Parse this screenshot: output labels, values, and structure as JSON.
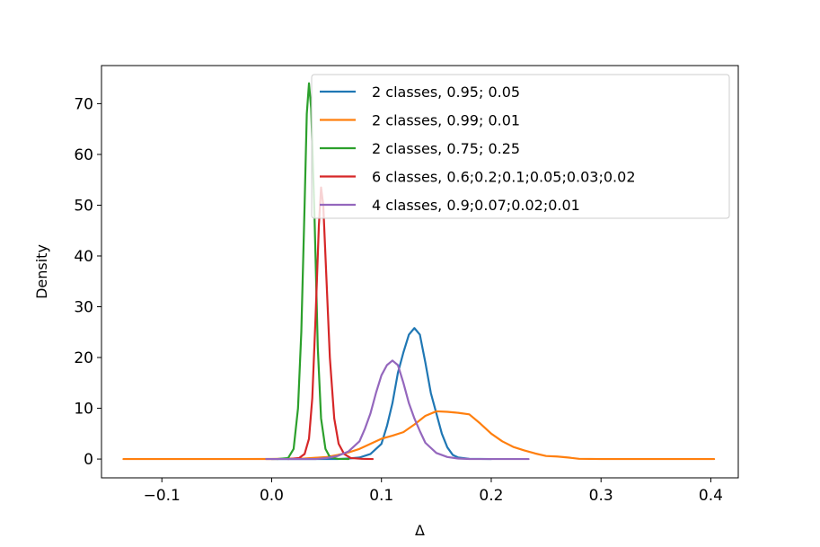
{
  "chart_data": {
    "type": "line",
    "title": "",
    "xlabel": "Δ",
    "ylabel": "Density",
    "xlim": [
      -0.155,
      0.425
    ],
    "ylim": [
      -3.7,
      77.5
    ],
    "xticks": [
      -0.1,
      0.0,
      0.1,
      0.2,
      0.3,
      0.4
    ],
    "xtick_labels": [
      "−0.1",
      "0.0",
      "0.1",
      "0.2",
      "0.3",
      "0.4"
    ],
    "yticks": [
      0,
      10,
      20,
      30,
      40,
      50,
      60,
      70
    ],
    "ytick_labels": [
      "0",
      "10",
      "20",
      "30",
      "40",
      "50",
      "60",
      "70"
    ],
    "grid": false,
    "legend_position": "top-right",
    "series": [
      {
        "name": "2 classes, 0.95; 0.05",
        "color": "#1f77b4",
        "points": [
          [
            0.0,
            0
          ],
          [
            0.06,
            0
          ],
          [
            0.07,
            0.1
          ],
          [
            0.08,
            0.3
          ],
          [
            0.09,
            1.0
          ],
          [
            0.1,
            3.0
          ],
          [
            0.105,
            6.5
          ],
          [
            0.11,
            11
          ],
          [
            0.115,
            17
          ],
          [
            0.12,
            21
          ],
          [
            0.125,
            24.5
          ],
          [
            0.13,
            25.8
          ],
          [
            0.135,
            24.5
          ],
          [
            0.14,
            19
          ],
          [
            0.145,
            13
          ],
          [
            0.15,
            9
          ],
          [
            0.155,
            5
          ],
          [
            0.16,
            2.3
          ],
          [
            0.165,
            0.8
          ],
          [
            0.17,
            0.3
          ],
          [
            0.18,
            0.05
          ],
          [
            0.2,
            0
          ]
        ]
      },
      {
        "name": "2 classes, 0.99; 0.01",
        "color": "#ff7f0e",
        "points": [
          [
            -0.135,
            0
          ],
          [
            -0.05,
            0
          ],
          [
            0.0,
            0.02
          ],
          [
            0.03,
            0.1
          ],
          [
            0.05,
            0.4
          ],
          [
            0.06,
            0.8
          ],
          [
            0.07,
            1.3
          ],
          [
            0.08,
            2.0
          ],
          [
            0.09,
            3.0
          ],
          [
            0.1,
            4.0
          ],
          [
            0.11,
            4.6
          ],
          [
            0.12,
            5.3
          ],
          [
            0.13,
            6.8
          ],
          [
            0.14,
            8.5
          ],
          [
            0.15,
            9.4
          ],
          [
            0.16,
            9.3
          ],
          [
            0.17,
            9.1
          ],
          [
            0.18,
            8.8
          ],
          [
            0.19,
            7.0
          ],
          [
            0.2,
            5.0
          ],
          [
            0.21,
            3.5
          ],
          [
            0.22,
            2.4
          ],
          [
            0.23,
            1.7
          ],
          [
            0.24,
            1.1
          ],
          [
            0.25,
            0.6
          ],
          [
            0.26,
            0.5
          ],
          [
            0.27,
            0.3
          ],
          [
            0.28,
            0.05
          ],
          [
            0.3,
            0
          ],
          [
            0.35,
            0
          ],
          [
            0.403,
            0
          ]
        ]
      },
      {
        "name": "2 classes, 0.75; 0.25",
        "color": "#2ca02c",
        "points": [
          [
            0.005,
            0
          ],
          [
            0.015,
            0.2
          ],
          [
            0.02,
            2
          ],
          [
            0.024,
            10
          ],
          [
            0.027,
            25
          ],
          [
            0.03,
            50
          ],
          [
            0.032,
            68
          ],
          [
            0.034,
            74
          ],
          [
            0.036,
            69
          ],
          [
            0.039,
            48
          ],
          [
            0.042,
            22
          ],
          [
            0.045,
            8
          ],
          [
            0.049,
            2
          ],
          [
            0.053,
            0.4
          ],
          [
            0.06,
            0.05
          ],
          [
            0.07,
            0
          ]
        ]
      },
      {
        "name": "6 classes, 0.6;0.2;0.1;0.05;0.03;0.02",
        "color": "#d62728",
        "points": [
          [
            0.015,
            0
          ],
          [
            0.025,
            0.2
          ],
          [
            0.03,
            1
          ],
          [
            0.034,
            4
          ],
          [
            0.037,
            12
          ],
          [
            0.04,
            28
          ],
          [
            0.043,
            46
          ],
          [
            0.045,
            53.5
          ],
          [
            0.047,
            50
          ],
          [
            0.05,
            35
          ],
          [
            0.053,
            20
          ],
          [
            0.057,
            8
          ],
          [
            0.061,
            3
          ],
          [
            0.066,
            1
          ],
          [
            0.072,
            0.2
          ],
          [
            0.082,
            0.05
          ],
          [
            0.092,
            0
          ]
        ]
      },
      {
        "name": "4 classes, 0.9;0.07;0.02;0.01",
        "color": "#9467bd",
        "points": [
          [
            -0.005,
            0
          ],
          [
            0.04,
            0
          ],
          [
            0.05,
            0.2
          ],
          [
            0.06,
            0.6
          ],
          [
            0.07,
            1.5
          ],
          [
            0.08,
            3.5
          ],
          [
            0.085,
            6
          ],
          [
            0.09,
            9
          ],
          [
            0.095,
            13
          ],
          [
            0.1,
            16.5
          ],
          [
            0.105,
            18.5
          ],
          [
            0.11,
            19.4
          ],
          [
            0.115,
            18.5
          ],
          [
            0.12,
            15
          ],
          [
            0.125,
            11
          ],
          [
            0.13,
            8
          ],
          [
            0.135,
            5.5
          ],
          [
            0.14,
            3.2
          ],
          [
            0.15,
            1.2
          ],
          [
            0.16,
            0.4
          ],
          [
            0.17,
            0.1
          ],
          [
            0.18,
            0.02
          ],
          [
            0.2,
            0
          ],
          [
            0.234,
            0
          ]
        ]
      }
    ]
  }
}
